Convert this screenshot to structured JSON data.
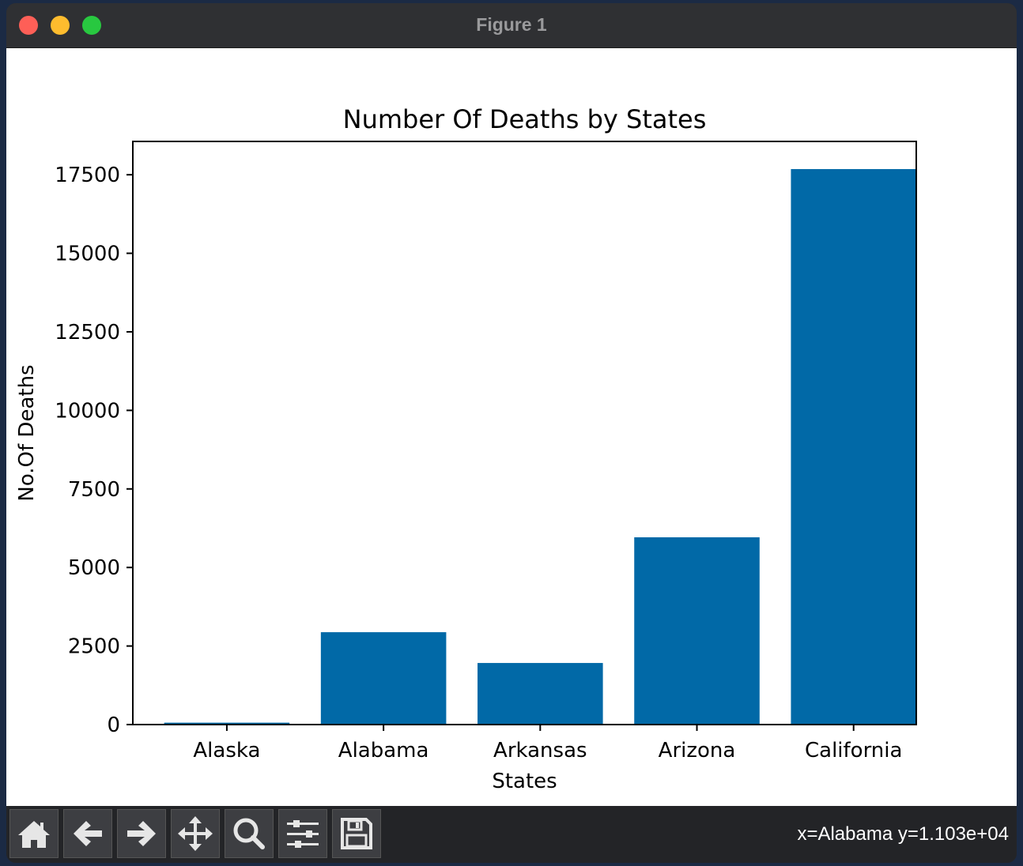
{
  "window": {
    "title": "Figure 1"
  },
  "toolbar": {
    "buttons": [
      {
        "name": "home-icon"
      },
      {
        "name": "back-arrow-icon"
      },
      {
        "name": "forward-arrow-icon"
      },
      {
        "name": "pan-icon"
      },
      {
        "name": "zoom-icon"
      },
      {
        "name": "configure-subplots-icon"
      },
      {
        "name": "save-icon"
      }
    ],
    "status": "x=Alabama y=1.103e+04"
  },
  "chart_data": {
    "type": "bar",
    "title": "Number Of Deaths by States",
    "xlabel": "States",
    "ylabel": "No.Of Deaths",
    "categories": [
      "Alaska",
      "Alabama",
      "Arkansas",
      "Arizona",
      "California"
    ],
    "values": [
      60,
      2940,
      1960,
      5960,
      17680
    ],
    "ylim": [
      0,
      18560
    ],
    "yticks": [
      0,
      2500,
      5000,
      7500,
      10000,
      12500,
      15000,
      17500
    ],
    "color": "#0169a7",
    "grid": false
  }
}
